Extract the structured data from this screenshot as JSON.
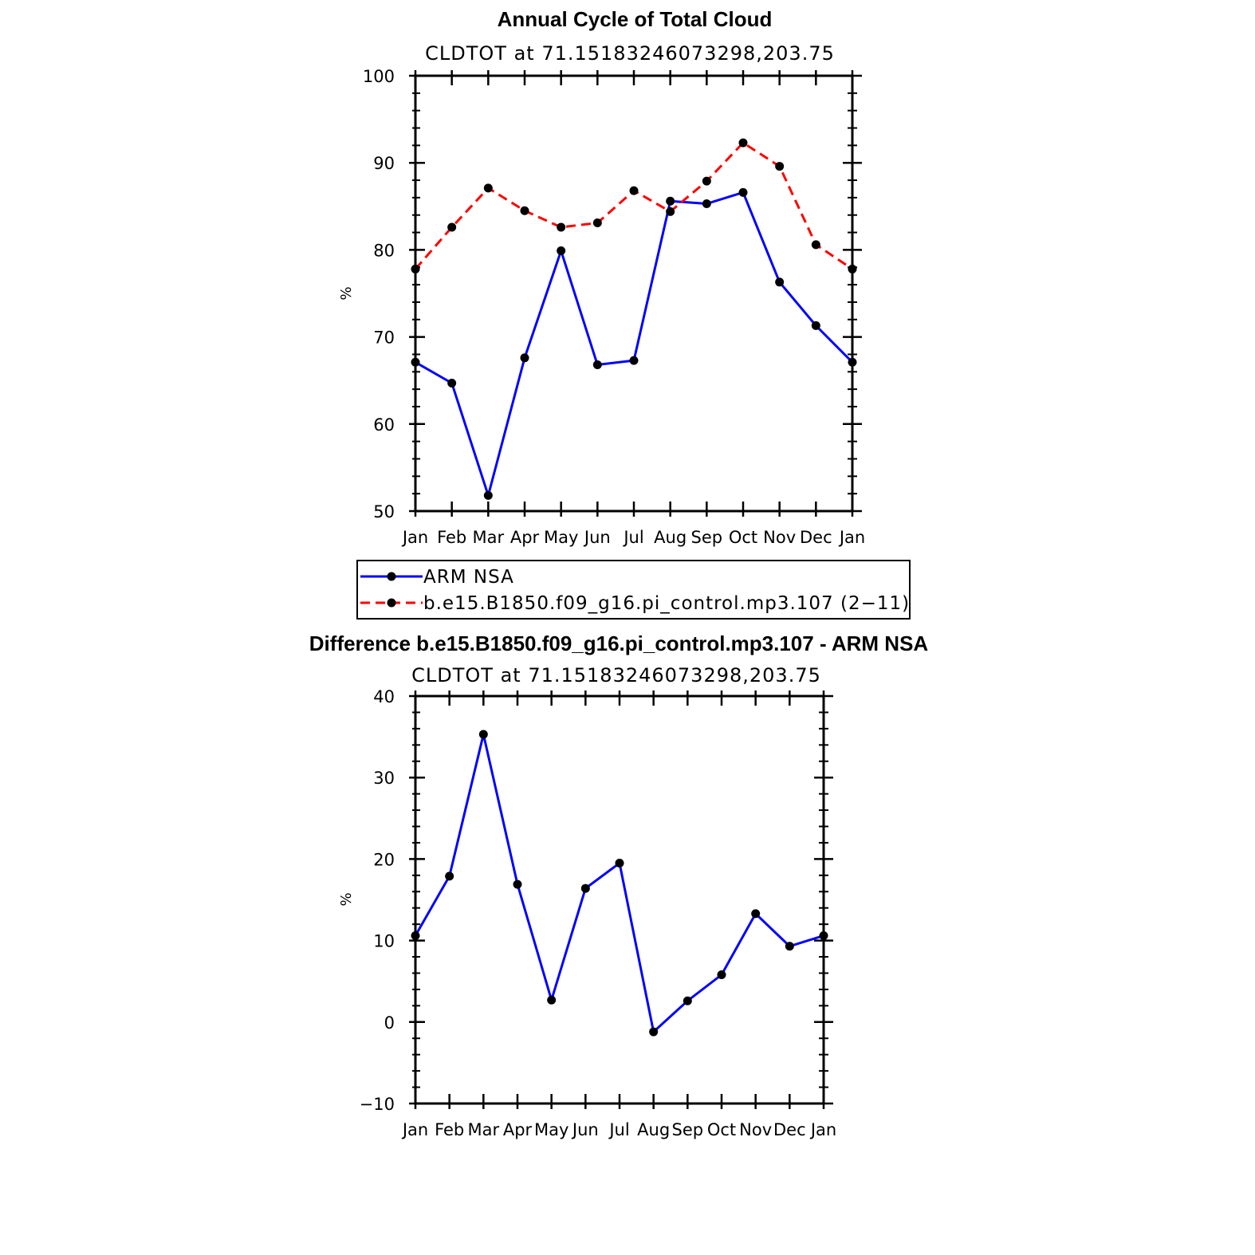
{
  "chart_data": [
    {
      "type": "line",
      "title": "Annual Cycle of Total Cloud",
      "subtitle": "CLDTOT at 71.15183246073298,203.75",
      "ylabel": "%",
      "ylim": [
        50,
        100
      ],
      "yticks": [
        50,
        60,
        70,
        80,
        90,
        100
      ],
      "categories": [
        "Jan",
        "Feb",
        "Mar",
        "Apr",
        "May",
        "Jun",
        "Jul",
        "Aug",
        "Sep",
        "Oct",
        "Nov",
        "Dec",
        "Jan"
      ],
      "series": [
        {
          "name": "ARM NSA",
          "color": "#0000ff",
          "style": "solid",
          "values": [
            67.1,
            64.7,
            51.8,
            67.6,
            79.9,
            66.8,
            67.3,
            85.6,
            85.3,
            86.6,
            76.3,
            71.3,
            67.1
          ]
        },
        {
          "name": "b.e15.B1850.f09_g16.pi_control.mp3.107 (2−11)",
          "color": "#ff0000",
          "style": "dashed",
          "values": [
            77.8,
            82.6,
            87.1,
            84.5,
            82.6,
            83.1,
            86.8,
            84.4,
            87.9,
            92.3,
            89.6,
            80.6,
            77.8
          ]
        }
      ],
      "legend": {
        "position": "bottom",
        "entries": [
          "ARM NSA",
          "b.e15.B1850.f09_g16.pi_control.mp3.107 (2−11)"
        ]
      }
    },
    {
      "type": "line",
      "title": "Difference b.e15.B1850.f09_g16.pi_control.mp3.107 - ARM NSA",
      "subtitle": "CLDTOT at 71.15183246073298,203.75",
      "ylabel": "%",
      "ylim": [
        -10,
        40
      ],
      "yticks": [
        -10,
        0,
        10,
        20,
        30,
        40
      ],
      "ytick_labels": [
        "−10",
        "0",
        "10",
        "20",
        "30",
        "40"
      ],
      "categories": [
        "Jan",
        "Feb",
        "Mar",
        "Apr",
        "May",
        "Jun",
        "Jul",
        "Aug",
        "Sep",
        "Oct",
        "Nov",
        "Dec",
        "Jan"
      ],
      "series": [
        {
          "color": "#0000ff",
          "style": "solid",
          "values": [
            10.6,
            17.9,
            35.3,
            16.9,
            2.7,
            16.4,
            19.5,
            -1.2,
            2.6,
            5.8,
            13.3,
            9.3,
            10.6
          ]
        }
      ]
    }
  ]
}
